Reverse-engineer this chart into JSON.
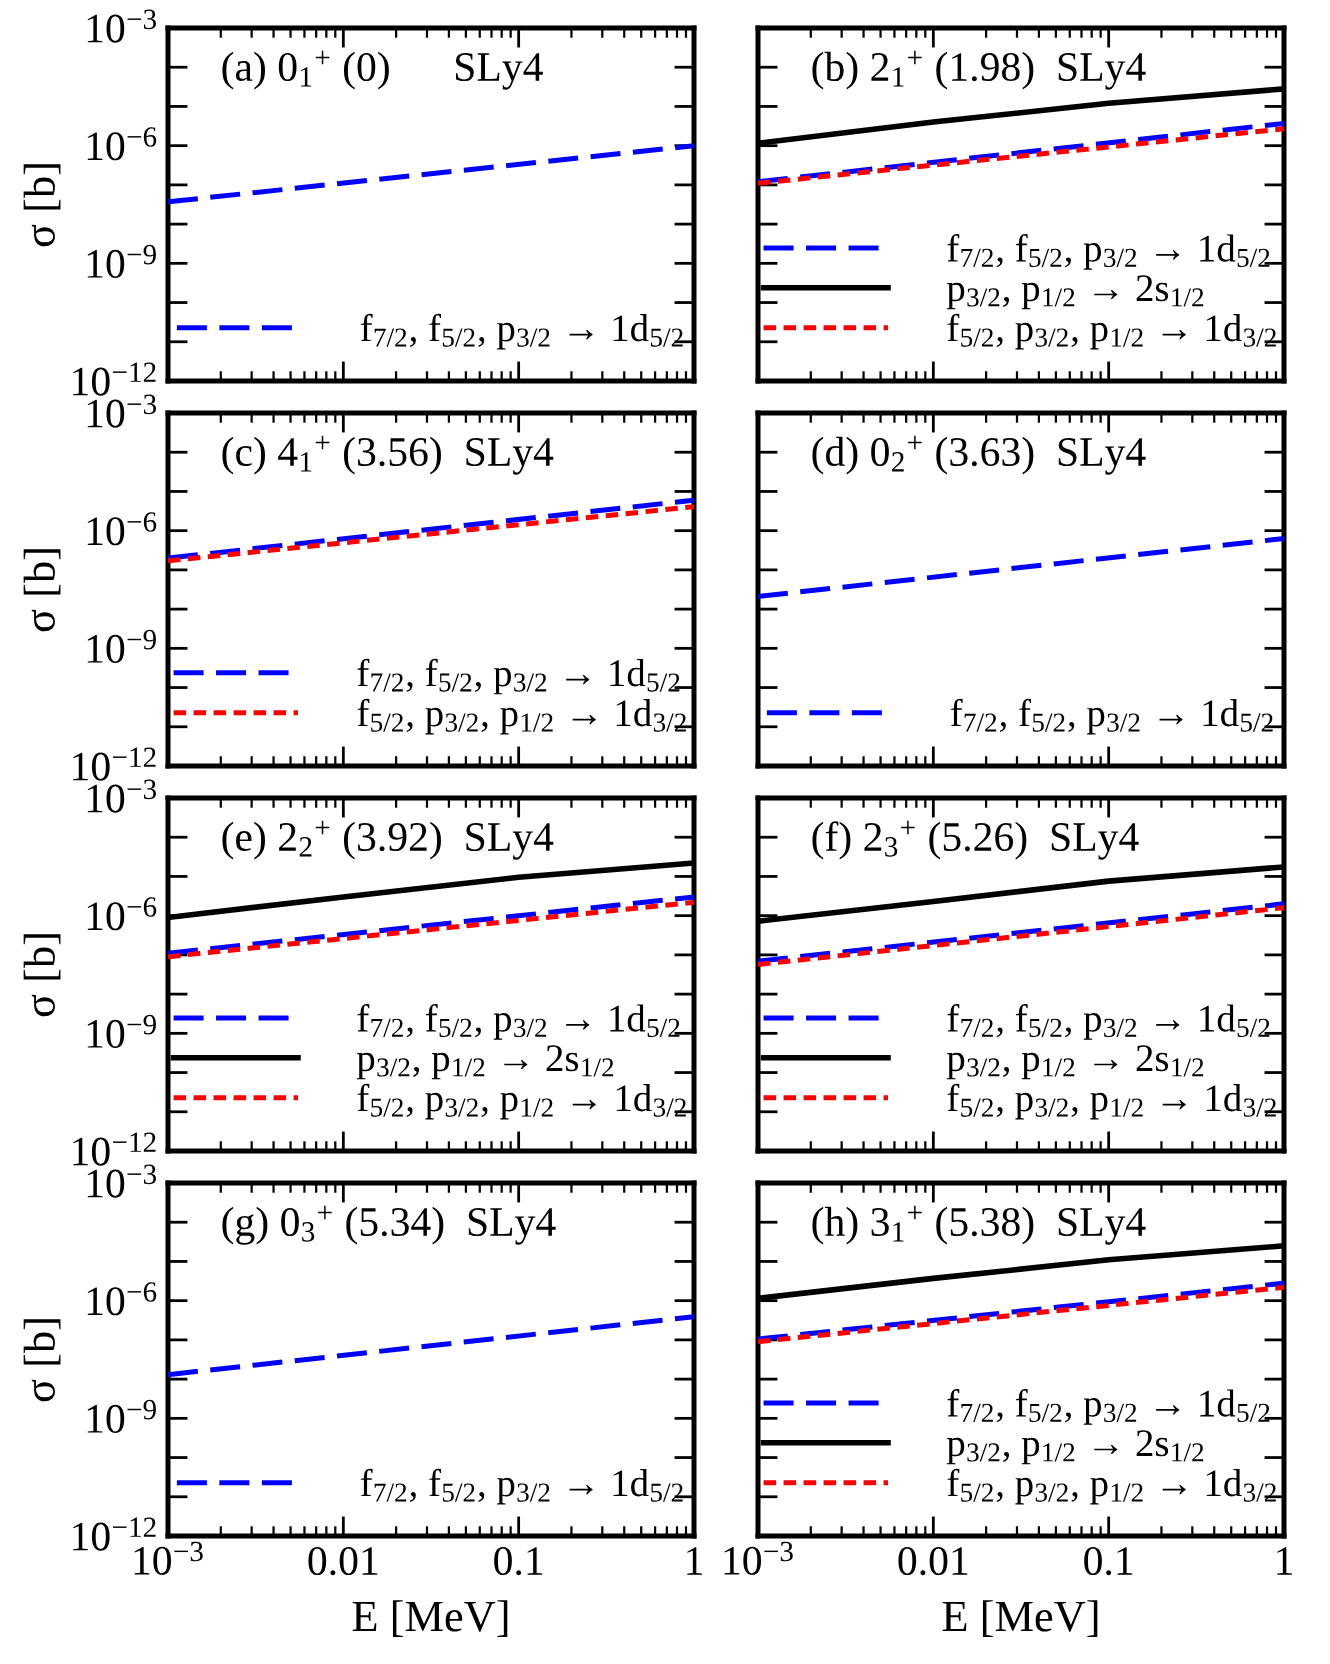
{
  "chart_data": [
    {
      "type": "line",
      "title": "(a) 0$_{1}$$^{+}$ (0)      SLy4",
      "ylabel": "σ [b]",
      "log": "xy",
      "xlim": [
        0.001,
        1
      ],
      "ylim": [
        1e-12,
        0.001
      ],
      "xticks": [
        {
          "value": 0.001,
          "label": null
        },
        {
          "value": 0.01,
          "label": null
        },
        {
          "value": 0.1,
          "label": null
        },
        {
          "value": 1,
          "label": null
        }
      ],
      "yticks": [
        {
          "value": 0.001,
          "label": "10$^{−3}$"
        },
        {
          "value": 0.0001,
          "label": null
        },
        {
          "value": 1e-05,
          "label": null
        },
        {
          "value": 1e-06,
          "label": "10$^{−6}$"
        },
        {
          "value": 1e-07,
          "label": null
        },
        {
          "value": 1e-08,
          "label": null
        },
        {
          "value": 1e-09,
          "label": "10$^{−9}$"
        },
        {
          "value": 1e-10,
          "label": null
        },
        {
          "value": 1e-11,
          "label": null
        },
        {
          "value": 1e-12,
          "label": "10$^{−12}$"
        }
      ],
      "tick_labels": "y",
      "legend": "bottom",
      "grid": false,
      "series": [
        {
          "name": "f$_{7/2}$, f$_{5/2}$, p$_{3/2}$ → 1d$_{5/2}$",
          "color": "#0000ff",
          "line_style": "dashed",
          "x": [
            0.001,
            1
          ],
          "values": [
            3.7e-08,
            1e-06
          ]
        }
      ]
    },
    {
      "type": "line",
      "title": "(b) 2$_{1}$$^{+}$ (1.98)  SLy4",
      "log": "xy",
      "xlim": [
        0.001,
        1
      ],
      "ylim": [
        1e-12,
        0.001
      ],
      "xticks": [
        {
          "value": 0.001,
          "label": null
        },
        {
          "value": 0.01,
          "label": null
        },
        {
          "value": 0.1,
          "label": null
        },
        {
          "value": 1,
          "label": null
        }
      ],
      "yticks": [
        {
          "value": 0.001,
          "label": null
        },
        {
          "value": 0.0001,
          "label": null
        },
        {
          "value": 1e-05,
          "label": null
        },
        {
          "value": 1e-06,
          "label": null
        },
        {
          "value": 1e-07,
          "label": null
        },
        {
          "value": 1e-08,
          "label": null
        },
        {
          "value": 1e-09,
          "label": null
        },
        {
          "value": 1e-10,
          "label": null
        },
        {
          "value": 1e-11,
          "label": null
        },
        {
          "value": 1e-12,
          "label": null
        }
      ],
      "tick_labels": false,
      "legend": "bottom",
      "grid": false,
      "series": [
        {
          "name": "f$_{7/2}$, f$_{5/2}$, p$_{3/2}$ → 1d$_{5/2}$",
          "color": "#0000ff",
          "line_style": "dashed",
          "x": [
            0.001,
            1
          ],
          "values": [
            1.2e-07,
            3.7e-06
          ]
        },
        {
          "name": "p$_{3/2}$, p$_{1/2}$ → 2s$_{1/2}$",
          "color": "#000000",
          "line_style": "solid",
          "x": [
            0.001,
            0.01,
            0.1,
            1
          ],
          "values": [
            1.15e-06,
            4e-06,
            1.2e-05,
            2.8e-05
          ]
        },
        {
          "name": "f$_{5/2}$, p$_{3/2}$, p$_{1/2}$ → 1d$_{3/2}$",
          "color": "#ff0000",
          "line_style": "dotted",
          "x": [
            0.001,
            1
          ],
          "values": [
            1.1e-07,
            2.7e-06
          ]
        }
      ]
    },
    {
      "type": "line",
      "title": "(c) 4$_{1}$$^{+}$ (3.56)  SLy4",
      "ylabel": "σ [b]",
      "log": "xy",
      "xlim": [
        0.001,
        1
      ],
      "ylim": [
        1e-12,
        0.001
      ],
      "xticks": [
        {
          "value": 0.001,
          "label": null
        },
        {
          "value": 0.01,
          "label": null
        },
        {
          "value": 0.1,
          "label": null
        },
        {
          "value": 1,
          "label": null
        }
      ],
      "yticks": [
        {
          "value": 0.001,
          "label": "10$^{−3}$"
        },
        {
          "value": 0.0001,
          "label": null
        },
        {
          "value": 1e-05,
          "label": null
        },
        {
          "value": 1e-06,
          "label": "10$^{−6}$"
        },
        {
          "value": 1e-07,
          "label": null
        },
        {
          "value": 1e-08,
          "label": null
        },
        {
          "value": 1e-09,
          "label": "10$^{−9}$"
        },
        {
          "value": 1e-10,
          "label": null
        },
        {
          "value": 1e-11,
          "label": null
        },
        {
          "value": 1e-12,
          "label": "10$^{−12}$"
        }
      ],
      "tick_labels": "y",
      "legend": "bottom",
      "grid": false,
      "series": [
        {
          "name": "f$_{7/2}$, f$_{5/2}$, p$_{3/2}$ → 1d$_{5/2}$",
          "color": "#0000ff",
          "line_style": "dashed",
          "x": [
            0.001,
            1
          ],
          "values": [
            2e-07,
            6e-06
          ]
        },
        {
          "name": "f$_{5/2}$, p$_{3/2}$, p$_{1/2}$ → 1d$_{3/2}$",
          "color": "#ff0000",
          "line_style": "dotted",
          "x": [
            0.001,
            1
          ],
          "values": [
            1.7e-07,
            4.1e-06
          ]
        }
      ]
    },
    {
      "type": "line",
      "title": "(d) 0$_{2}$$^{+}$ (3.63)  SLy4",
      "log": "xy",
      "xlim": [
        0.001,
        1
      ],
      "ylim": [
        1e-12,
        0.001
      ],
      "xticks": [
        {
          "value": 0.001,
          "label": null
        },
        {
          "value": 0.01,
          "label": null
        },
        {
          "value": 0.1,
          "label": null
        },
        {
          "value": 1,
          "label": null
        }
      ],
      "yticks": [
        {
          "value": 0.001,
          "label": null
        },
        {
          "value": 0.0001,
          "label": null
        },
        {
          "value": 1e-05,
          "label": null
        },
        {
          "value": 1e-06,
          "label": null
        },
        {
          "value": 1e-07,
          "label": null
        },
        {
          "value": 1e-08,
          "label": null
        },
        {
          "value": 1e-09,
          "label": null
        },
        {
          "value": 1e-10,
          "label": null
        },
        {
          "value": 1e-11,
          "label": null
        },
        {
          "value": 1e-12,
          "label": null
        }
      ],
      "tick_labels": false,
      "legend": "bottom",
      "grid": false,
      "series": [
        {
          "name": "f$_{7/2}$, f$_{5/2}$, p$_{3/2}$ → 1d$_{5/2}$",
          "color": "#0000ff",
          "line_style": "dashed",
          "x": [
            0.001,
            1
          ],
          "values": [
            2.1e-08,
            6.3e-07
          ]
        }
      ]
    },
    {
      "type": "line",
      "title": "(e) 2$_{2}$$^{+}$ (3.92)  SLy4",
      "ylabel": "σ [b]",
      "log": "xy",
      "xlim": [
        0.001,
        1
      ],
      "ylim": [
        1e-12,
        0.001
      ],
      "xticks": [
        {
          "value": 0.001,
          "label": null
        },
        {
          "value": 0.01,
          "label": null
        },
        {
          "value": 0.1,
          "label": null
        },
        {
          "value": 1,
          "label": null
        }
      ],
      "yticks": [
        {
          "value": 0.001,
          "label": "10$^{−3}$"
        },
        {
          "value": 0.0001,
          "label": null
        },
        {
          "value": 1e-05,
          "label": null
        },
        {
          "value": 1e-06,
          "label": "10$^{−6}$"
        },
        {
          "value": 1e-07,
          "label": null
        },
        {
          "value": 1e-08,
          "label": null
        },
        {
          "value": 1e-09,
          "label": "10$^{−9}$"
        },
        {
          "value": 1e-10,
          "label": null
        },
        {
          "value": 1e-11,
          "label": null
        },
        {
          "value": 1e-12,
          "label": "10$^{−12}$"
        }
      ],
      "tick_labels": "y",
      "legend": "bottom",
      "grid": false,
      "series": [
        {
          "name": "f$_{7/2}$, f$_{5/2}$, p$_{3/2}$ → 1d$_{5/2}$",
          "color": "#0000ff",
          "line_style": "dashed",
          "x": [
            0.001,
            1
          ],
          "values": [
            1.1e-07,
            3e-06
          ]
        },
        {
          "name": "p$_{3/2}$, p$_{1/2}$ → 2s$_{1/2}$",
          "color": "#000000",
          "line_style": "solid",
          "x": [
            0.001,
            0.01,
            0.1,
            1
          ],
          "values": [
            9e-07,
            3e-06,
            9.5e-06,
            2.2e-05
          ]
        },
        {
          "name": "f$_{5/2}$, p$_{3/2}$, p$_{1/2}$ → 1d$_{3/2}$",
          "color": "#ff0000",
          "line_style": "dotted",
          "x": [
            0.001,
            1
          ],
          "values": [
            9e-08,
            2.2e-06
          ]
        }
      ]
    },
    {
      "type": "line",
      "title": "(f) 2$_{3}$$^{+}$ (5.26)  SLy4",
      "log": "xy",
      "xlim": [
        0.001,
        1
      ],
      "ylim": [
        1e-12,
        0.001
      ],
      "xticks": [
        {
          "value": 0.001,
          "label": null
        },
        {
          "value": 0.01,
          "label": null
        },
        {
          "value": 0.1,
          "label": null
        },
        {
          "value": 1,
          "label": null
        }
      ],
      "yticks": [
        {
          "value": 0.001,
          "label": null
        },
        {
          "value": 0.0001,
          "label": null
        },
        {
          "value": 1e-05,
          "label": null
        },
        {
          "value": 1e-06,
          "label": null
        },
        {
          "value": 1e-07,
          "label": null
        },
        {
          "value": 1e-08,
          "label": null
        },
        {
          "value": 1e-09,
          "label": null
        },
        {
          "value": 1e-10,
          "label": null
        },
        {
          "value": 1e-11,
          "label": null
        },
        {
          "value": 1e-12,
          "label": null
        }
      ],
      "tick_labels": false,
      "legend": "bottom",
      "grid": false,
      "series": [
        {
          "name": "f$_{7/2}$, f$_{5/2}$, p$_{3/2}$ → 1d$_{5/2}$",
          "color": "#0000ff",
          "line_style": "dashed",
          "x": [
            0.001,
            1
          ],
          "values": [
            6.9e-08,
            2e-06
          ]
        },
        {
          "name": "p$_{3/2}$, p$_{1/2}$ → 2s$_{1/2}$",
          "color": "#000000",
          "line_style": "solid",
          "x": [
            0.001,
            0.01,
            0.1,
            1
          ],
          "values": [
            7.2e-07,
            2.3e-06,
            7.6e-06,
            1.75e-05
          ]
        },
        {
          "name": "f$_{5/2}$, p$_{3/2}$, p$_{1/2}$ → 1d$_{3/2}$",
          "color": "#ff0000",
          "line_style": "dotted",
          "x": [
            0.001,
            1
          ],
          "values": [
            5.7e-08,
            1.6e-06
          ]
        }
      ]
    },
    {
      "type": "line",
      "title": "(g) 0$_{3}$$^{+}$ (5.34)  SLy4",
      "ylabel": "σ [b]",
      "xlabel": "E [MeV]",
      "log": "xy",
      "xlim": [
        0.001,
        1
      ],
      "ylim": [
        1e-12,
        0.001
      ],
      "xticks": [
        {
          "value": 0.001,
          "label": "10$^{−3}$"
        },
        0.01,
        0.1,
        1
      ],
      "yticks": [
        {
          "value": 0.001,
          "label": "10$^{−3}$"
        },
        {
          "value": 0.0001,
          "label": null
        },
        {
          "value": 1e-05,
          "label": null
        },
        {
          "value": 1e-06,
          "label": "10$^{−6}$"
        },
        {
          "value": 1e-07,
          "label": null
        },
        {
          "value": 1e-08,
          "label": null
        },
        {
          "value": 1e-09,
          "label": "10$^{−9}$"
        },
        {
          "value": 1e-10,
          "label": null
        },
        {
          "value": 1e-11,
          "label": null
        },
        {
          "value": 1e-12,
          "label": "10$^{−12}$"
        }
      ],
      "legend": "bottom",
      "grid": false,
      "series": [
        {
          "name": "f$_{7/2}$, f$_{5/2}$, p$_{3/2}$ → 1d$_{5/2}$",
          "color": "#0000ff",
          "line_style": "dashed",
          "x": [
            0.001,
            1
          ],
          "values": [
            1.3e-08,
            3.9e-07
          ]
        }
      ]
    },
    {
      "type": "line",
      "title": "(h) 3$_{1}$$^{+}$ (5.38)  SLy4",
      "xlabel": "E [MeV]",
      "log": "xy",
      "xlim": [
        0.001,
        1
      ],
      "ylim": [
        1e-12,
        0.001
      ],
      "xticks": [
        {
          "value": 0.001,
          "label": "10$^{−3}$"
        },
        0.01,
        0.1,
        1
      ],
      "yticks": [
        {
          "value": 0.001,
          "label": null
        },
        {
          "value": 0.0001,
          "label": null
        },
        {
          "value": 1e-05,
          "label": null
        },
        {
          "value": 1e-06,
          "label": null
        },
        {
          "value": 1e-07,
          "label": null
        },
        {
          "value": 1e-08,
          "label": null
        },
        {
          "value": 1e-09,
          "label": null
        },
        {
          "value": 1e-10,
          "label": null
        },
        {
          "value": 1e-11,
          "label": null
        },
        {
          "value": 1e-12,
          "label": null
        }
      ],
      "tick_labels": "x",
      "legend": "bottom",
      "grid": false,
      "series": [
        {
          "name": "f$_{7/2}$, f$_{5/2}$, p$_{3/2}$ → 1d$_{5/2}$",
          "color": "#0000ff",
          "line_style": "dashed",
          "x": [
            0.001,
            1
          ],
          "values": [
            1.05e-07,
            2.8e-06
          ]
        },
        {
          "name": "p$_{3/2}$, p$_{1/2}$ → 2s$_{1/2}$",
          "color": "#000000",
          "line_style": "solid",
          "x": [
            0.001,
            0.01,
            0.1,
            1
          ],
          "values": [
            1.15e-06,
            3.7e-06,
            1.1e-05,
            2.5e-05
          ]
        },
        {
          "name": "f$_{5/2}$, p$_{3/2}$, p$_{1/2}$ → 1d$_{3/2}$",
          "color": "#ff0000",
          "line_style": "dotted",
          "x": [
            0.001,
            1
          ],
          "values": [
            9e-08,
            2.2e-06
          ]
        }
      ]
    }
  ]
}
